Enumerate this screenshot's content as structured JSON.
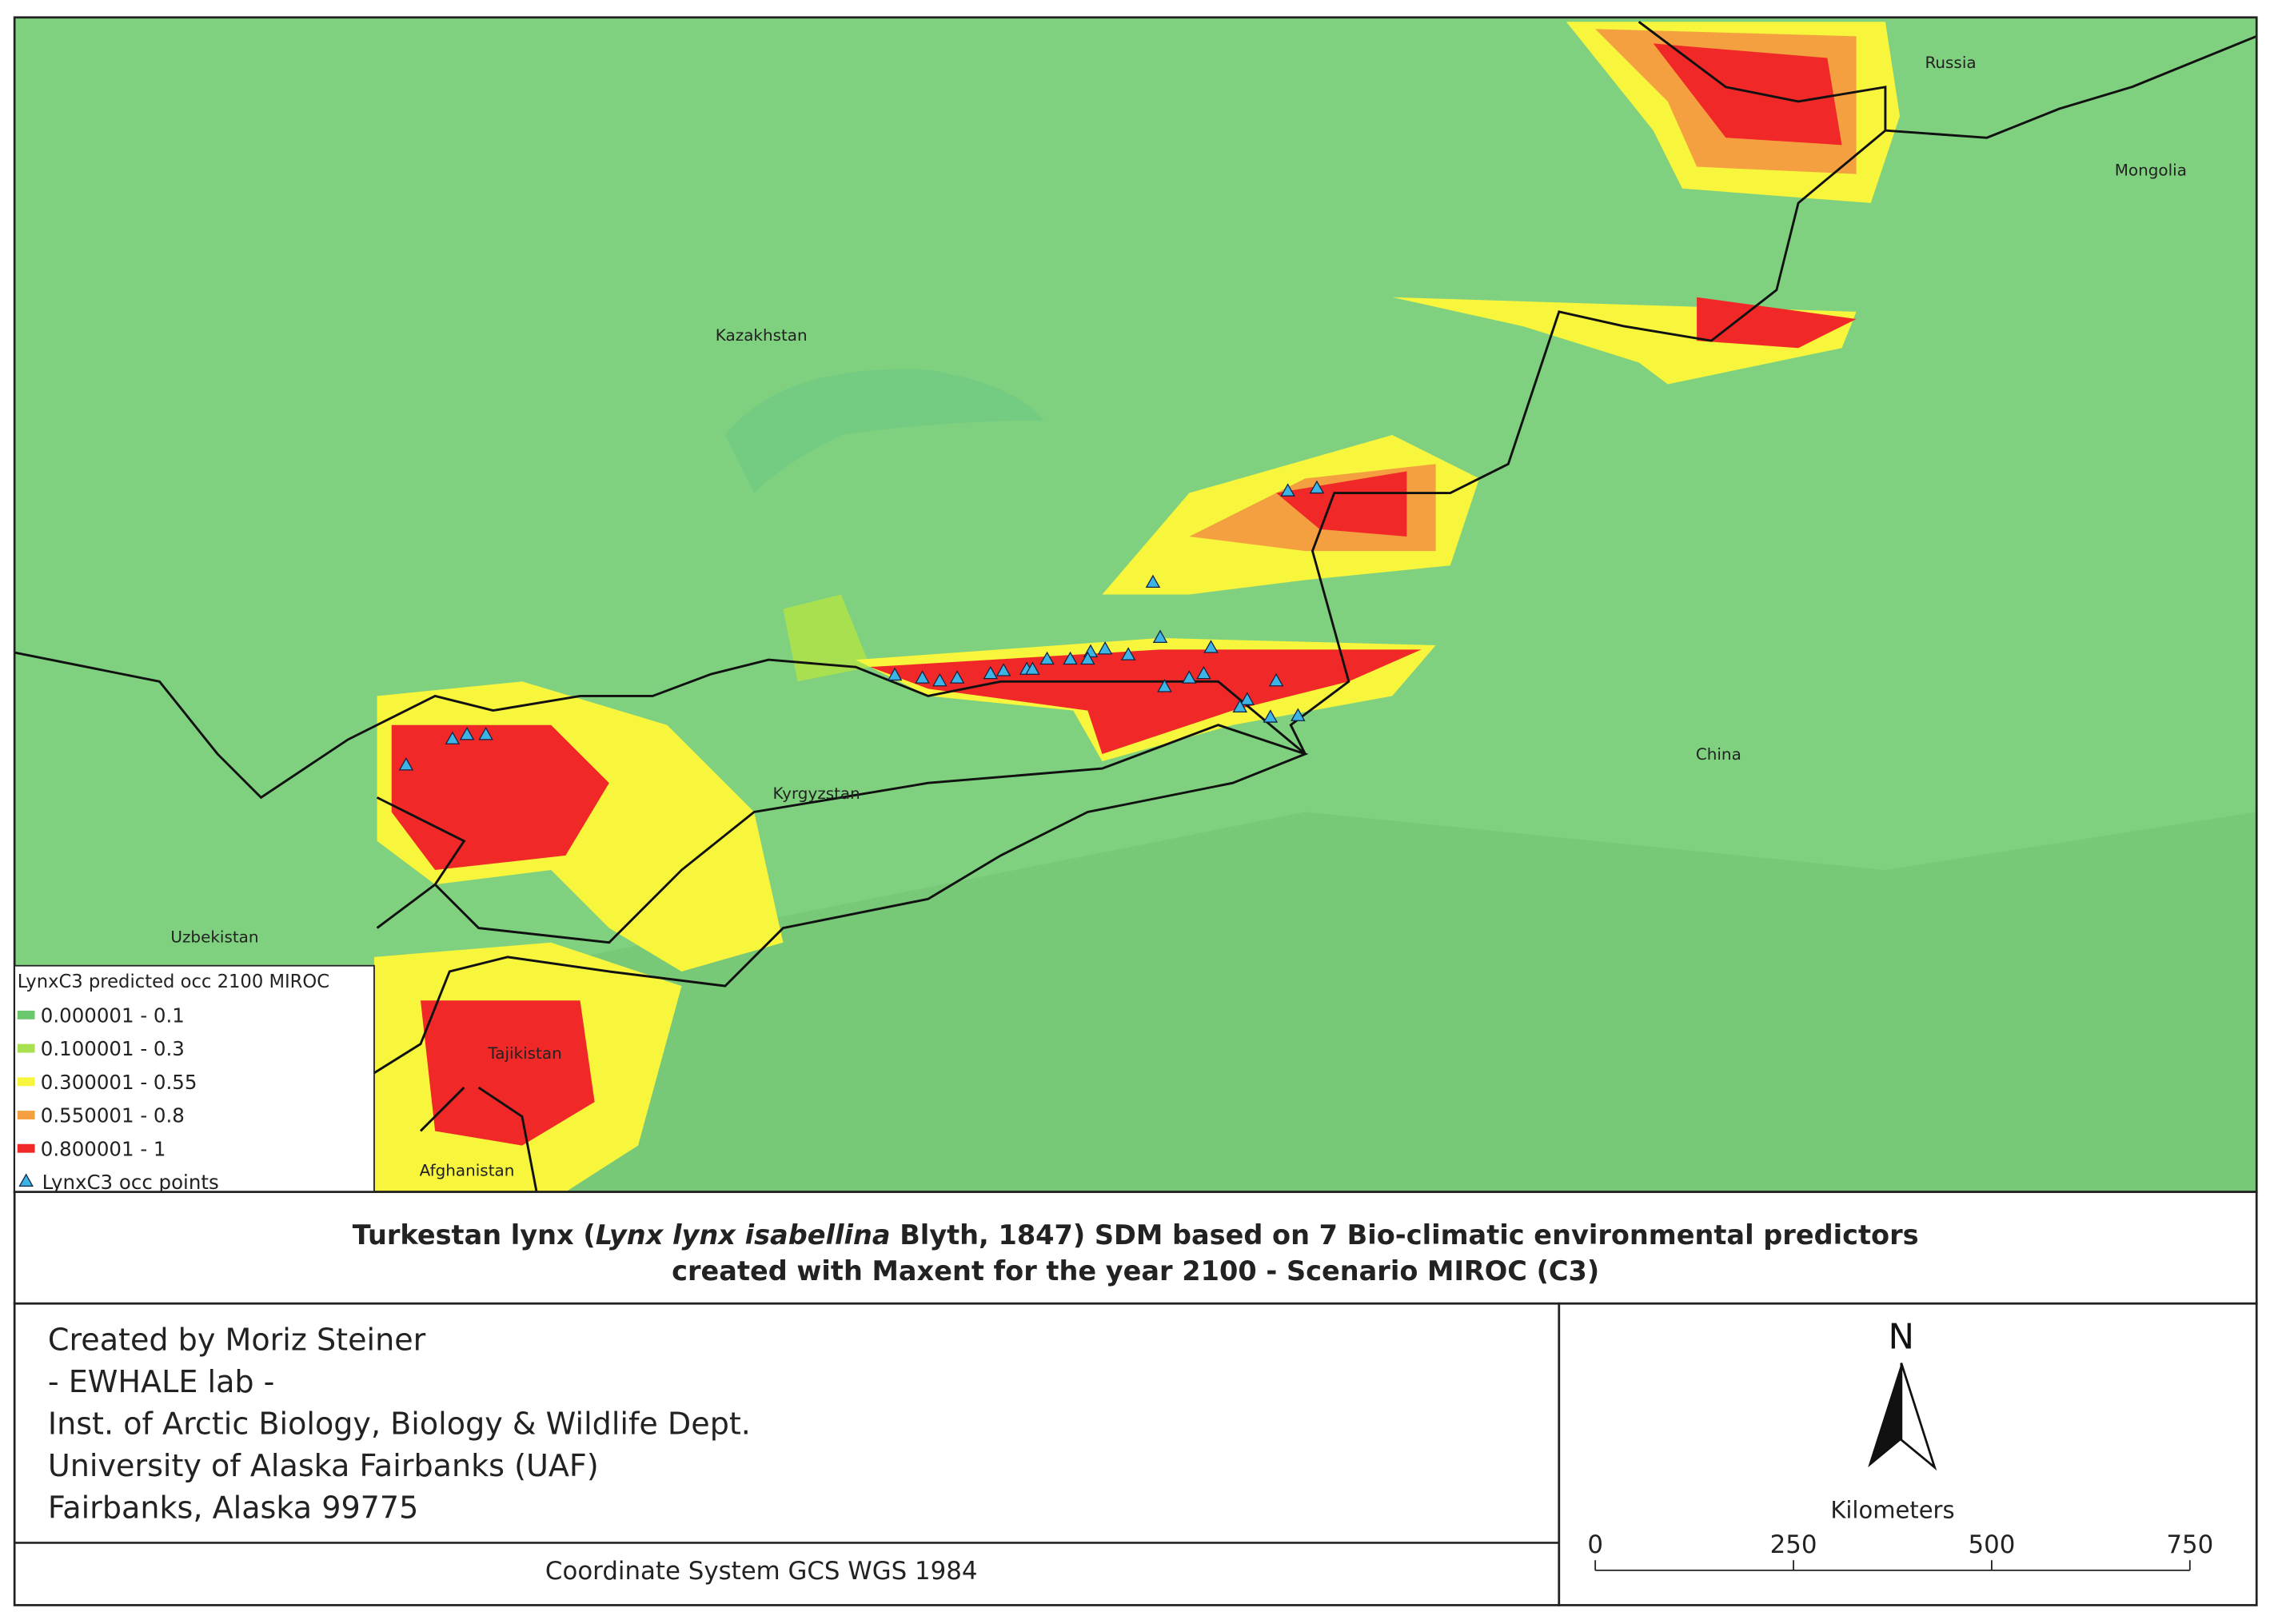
{
  "map": {
    "labels": [
      "Russia",
      "Mongolia",
      "Kazakhstan",
      "Kyrgyzstan",
      "China",
      "Uzbekistan",
      "Tajikistan",
      "Afghanistan"
    ],
    "legend": {
      "title": "LynxC3 predicted occ 2100 MIROC",
      "items": [
        {
          "label": "0.000001 - 0.1",
          "color": "#6cc86c"
        },
        {
          "label": "0.100001 - 0.3",
          "color": "#a8e050"
        },
        {
          "label": "0.300001 - 0.55",
          "color": "#f7f53c"
        },
        {
          "label": "0.550001 - 0.8",
          "color": "#f5a040"
        },
        {
          "label": "0.800001 - 1",
          "color": "#f02828"
        }
      ],
      "points": {
        "label": "LynxC3 occ points",
        "color": "#3cb4e6"
      }
    }
  },
  "title": {
    "line1": [
      "Turkestan lynx (",
      "Lynx lynx isabellina",
      " Blyth, 1847) SDM based on 7 Bio-climatic environmental predictors"
    ],
    "line2": "created with Maxent for the year 2100 - Scenario MIROC (C3)"
  },
  "credits": [
    "Created by Moriz Steiner",
    "- EWHALE lab -",
    "Inst. of Arctic Biology,  Biology & Wildlife Dept.",
    "University of Alaska Fairbanks (UAF)",
    "Fairbanks, Alaska 99775"
  ],
  "coordinate_system": "Coordinate System GCS WGS 1984",
  "north_arrow": "N",
  "scale_bar": {
    "title": "Kilometers",
    "ticks": [
      0,
      250,
      500,
      750
    ]
  }
}
